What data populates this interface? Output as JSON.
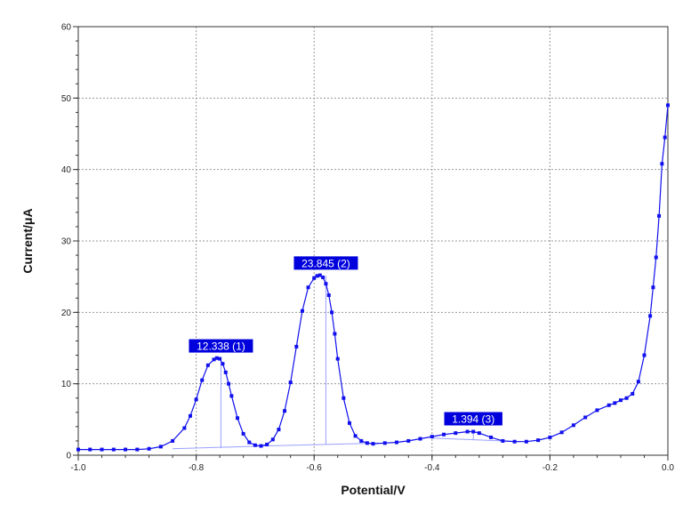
{
  "chart_data": {
    "type": "line",
    "title": "",
    "xlabel": "Potential/V",
    "ylabel": "Current/μA",
    "xlim": [
      -1.0,
      0.0
    ],
    "ylim": [
      0,
      60
    ],
    "x_ticks": [
      -1.0,
      -0.8,
      -0.6,
      -0.4,
      -0.2,
      0.0
    ],
    "x_tick_labels": [
      "-1.0",
      "-0.8",
      "-0.6",
      "-0.4",
      "-0.2",
      "0.0"
    ],
    "y_ticks": [
      0,
      10,
      20,
      30,
      40,
      50,
      60
    ],
    "y_tick_labels": [
      "0",
      "10",
      "20",
      "30",
      "40",
      "50",
      "60"
    ],
    "grid": true,
    "series_color": "#1010ee",
    "label_color": "#0000dd",
    "baseline_color": "#9aa0ff",
    "series": [
      {
        "x": [
          -1.0,
          -0.98,
          -0.96,
          -0.94,
          -0.92,
          -0.9,
          -0.88,
          -0.86,
          -0.84,
          -0.82,
          -0.81,
          -0.8,
          -0.79,
          -0.78,
          -0.77,
          -0.765,
          -0.76,
          -0.755,
          -0.75,
          -0.745,
          -0.74,
          -0.73,
          -0.72,
          -0.71,
          -0.7,
          -0.69,
          -0.68,
          -0.67,
          -0.66,
          -0.65,
          -0.64,
          -0.63,
          -0.62,
          -0.61,
          -0.6,
          -0.595,
          -0.59,
          -0.585,
          -0.58,
          -0.575,
          -0.57,
          -0.565,
          -0.56,
          -0.55,
          -0.54,
          -0.53,
          -0.52,
          -0.51,
          -0.5,
          -0.48,
          -0.46,
          -0.44,
          -0.42,
          -0.4,
          -0.38,
          -0.36,
          -0.34,
          -0.33,
          -0.32,
          -0.3,
          -0.28,
          -0.26,
          -0.24,
          -0.22,
          -0.2,
          -0.18,
          -0.16,
          -0.14,
          -0.12,
          -0.1,
          -0.09,
          -0.08,
          -0.07,
          -0.06,
          -0.05,
          -0.04,
          -0.03,
          -0.025,
          -0.02,
          -0.015,
          -0.01,
          -0.005,
          0.0
        ],
        "y": [
          0.8,
          0.8,
          0.8,
          0.8,
          0.8,
          0.8,
          0.9,
          1.2,
          2.0,
          3.8,
          5.5,
          7.8,
          10.5,
          12.6,
          13.4,
          13.6,
          13.5,
          12.8,
          11.6,
          10.0,
          8.3,
          5.2,
          3.0,
          1.8,
          1.4,
          1.3,
          1.5,
          2.2,
          3.6,
          6.2,
          10.2,
          15.2,
          20.2,
          23.5,
          24.8,
          25.1,
          25.2,
          24.9,
          24.0,
          22.4,
          20.0,
          17.0,
          13.5,
          8.0,
          4.5,
          2.7,
          2.0,
          1.7,
          1.6,
          1.7,
          1.8,
          2.0,
          2.3,
          2.6,
          2.9,
          3.1,
          3.3,
          3.3,
          3.1,
          2.5,
          2.0,
          1.9,
          1.9,
          2.1,
          2.5,
          3.2,
          4.2,
          5.3,
          6.3,
          7.0,
          7.3,
          7.7,
          8.0,
          8.6,
          10.3,
          14.0,
          19.5,
          23.5,
          27.7,
          33.5,
          40.8,
          44.5,
          49.0
        ]
      }
    ],
    "baselines": [
      {
        "x": [
          -0.84,
          -0.68
        ],
        "y": [
          0.9,
          1.3
        ]
      },
      {
        "x": [
          -0.68,
          -0.49
        ],
        "y": [
          1.3,
          1.7
        ]
      },
      {
        "x": [
          -0.4,
          -0.25
        ],
        "y": [
          2.4,
          1.9
        ]
      }
    ],
    "peaks": [
      {
        "x": -0.758,
        "y": 13.5,
        "base": 1.0,
        "label": "12.338 (1)"
      },
      {
        "x": -0.58,
        "y": 25.1,
        "base": 1.5,
        "label": "23.845 (2)"
      },
      {
        "x": -0.33,
        "y": 3.3,
        "base": 2.1,
        "label": "1.394 (3)"
      }
    ]
  }
}
